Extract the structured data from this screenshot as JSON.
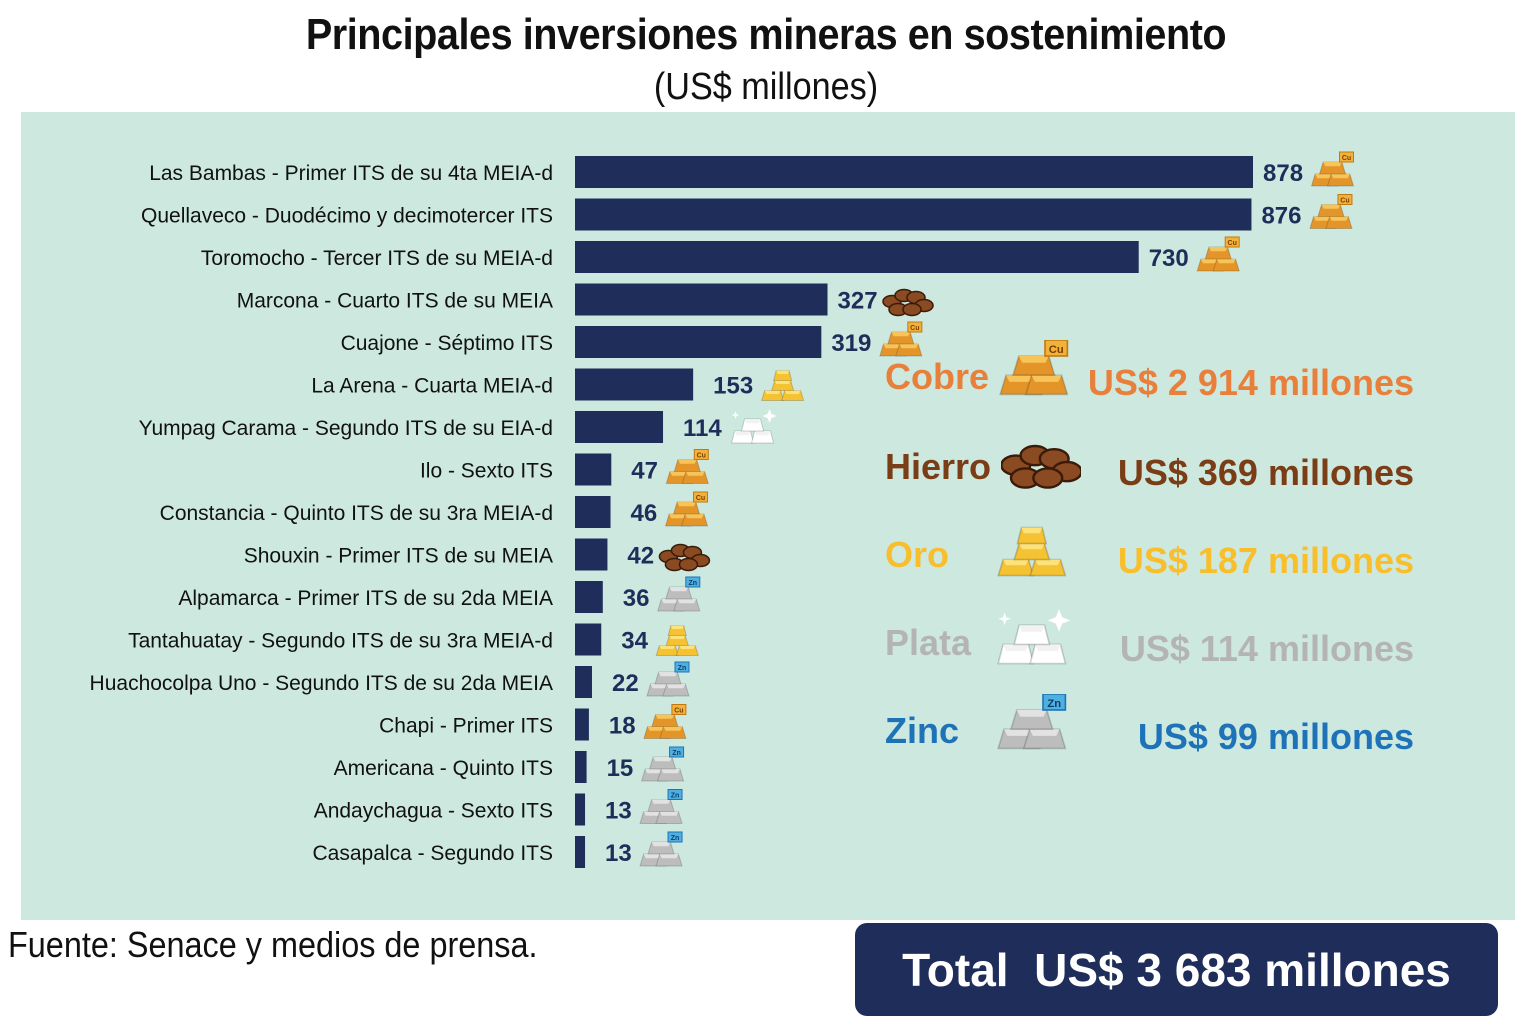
{
  "title": "Principales inversiones mineras en sostenimiento",
  "subtitle": "(US$ millones)",
  "source": "Fuente: Senace y medios de prensa.",
  "colors": {
    "panel_bg": "#cce8df",
    "bar": "#1e2d5a",
    "label": "#111111",
    "value": "#1e2d5a",
    "cobre": "#e8803c",
    "hierro": "#7a3d16",
    "oro": "#f8be2c",
    "plata": "#b4b4b4",
    "zinc": "#1e73b8",
    "total_bg": "#1e2d5a"
  },
  "chart_data": {
    "type": "bar",
    "orientation": "horizontal",
    "categories": [
      "Las Bambas - Primer ITS de su 4ta MEIA-d",
      "Quellaveco - Duodécimo y decimotercer ITS",
      "Toromocho - Tercer ITS de su MEIA-d",
      "Marcona - Cuarto ITS de su MEIA",
      "Cuajone - Séptimo ITS",
      "La Arena - Cuarta MEIA-d",
      "Yumpag Carama - Segundo ITS de su EIA-d",
      "Ilo - Sexto ITS",
      "Constancia - Quinto ITS de su 3ra MEIA-d",
      "Shouxin - Primer ITS de su MEIA",
      "Alpamarca - Primer ITS de su 2da MEIA",
      "Tantahuatay - Segundo ITS de su 3ra MEIA-d",
      "Huachocolpa Uno - Segundo ITS de su 2da MEIA",
      "Chapi - Primer ITS",
      "Americana - Quinto ITS",
      "Andaychagua - Sexto ITS",
      "Casapalca - Segundo ITS"
    ],
    "values": [
      878,
      876,
      730,
      327,
      319,
      153,
      114,
      47,
      46,
      42,
      36,
      34,
      22,
      18,
      15,
      13,
      13
    ],
    "minerals": [
      "cobre",
      "cobre",
      "cobre",
      "hierro",
      "cobre",
      "oro",
      "plata",
      "cobre",
      "cobre",
      "hierro",
      "zinc",
      "oro",
      "zinc",
      "cobre",
      "zinc",
      "zinc",
      "zinc"
    ],
    "unit": "US$ millones",
    "xlim": [
      0,
      878
    ],
    "grid": false,
    "legend": [
      {
        "key": "cobre",
        "name": "Cobre",
        "value_text": "US$  2 914 millones",
        "icon": "copper-ingot-icon"
      },
      {
        "key": "hierro",
        "name": "Hierro",
        "value_text": "US$  369 millones",
        "icon": "iron-ore-icon"
      },
      {
        "key": "oro",
        "name": "Oro",
        "value_text": "US$  187 millones",
        "icon": "gold-bars-icon"
      },
      {
        "key": "plata",
        "name": "Plata",
        "value_text": "US$  114 millones",
        "icon": "silver-bars-icon"
      },
      {
        "key": "zinc",
        "name": "Zinc",
        "value_text": "US$  99 millones",
        "icon": "zinc-ingot-icon"
      }
    ],
    "total_text": "Total  US$ 3 683 millones"
  }
}
